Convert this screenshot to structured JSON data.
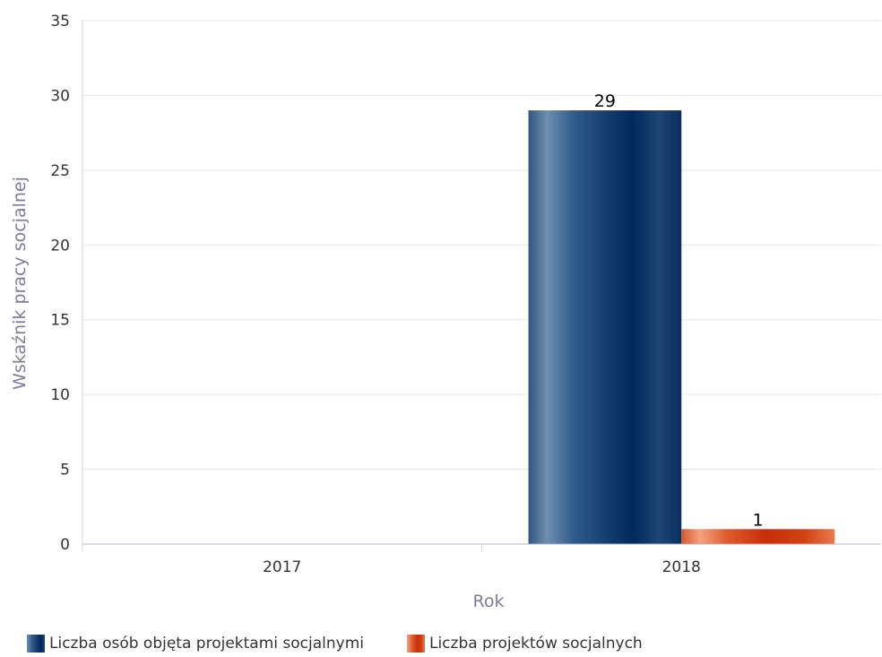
{
  "chart_data": {
    "type": "bar",
    "categories": [
      "2017",
      "2018"
    ],
    "series": [
      {
        "name": "Liczba osób objęta projektami socjalnymi",
        "values": [
          0,
          29
        ],
        "color": "#1a4170"
      },
      {
        "name": "Liczba projektów socjalnych",
        "values": [
          0,
          1
        ],
        "color": "#d34012"
      }
    ],
    "data_labels": [
      {
        "series": 0,
        "category": "2018",
        "text": "29"
      },
      {
        "series": 1,
        "category": "2018",
        "text": "1"
      }
    ],
    "xlabel": "Rok",
    "ylabel": "Wskaźnik pracy socjalnej",
    "ylim": [
      0,
      35
    ],
    "yticks": [
      "0",
      "5",
      "10",
      "15",
      "20",
      "25",
      "30",
      "35"
    ],
    "grid": true,
    "legend_position": "bottom-left"
  }
}
